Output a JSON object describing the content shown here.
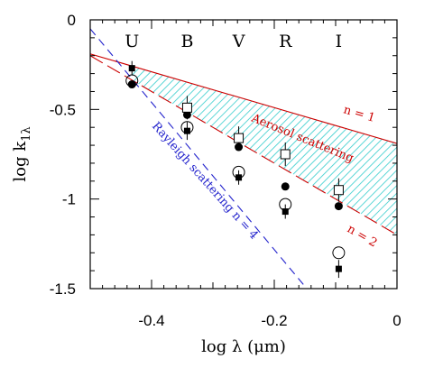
{
  "chart_data": {
    "type": "scatter",
    "xlabel": "log λ (μm)",
    "ylabel": "log k",
    "ylabel_sub": "1λ",
    "xlim": [
      -0.5,
      0
    ],
    "ylim": [
      -1.5,
      0
    ],
    "x_ticks": [
      -0.4,
      -0.2,
      0
    ],
    "x_tick_labels": [
      "-0.4",
      "-0.2",
      "0"
    ],
    "y_ticks": [
      0,
      -0.5,
      -1,
      -1.5
    ],
    "y_tick_labels": [
      "0",
      "-0.5",
      "-1",
      "-1.5"
    ],
    "bands": [
      {
        "label": "U",
        "x": -0.432
      },
      {
        "label": "B",
        "x": -0.342
      },
      {
        "label": "V",
        "x": -0.258
      },
      {
        "label": "R",
        "x": -0.182
      },
      {
        "label": "I",
        "x": -0.095
      }
    ],
    "series": [
      {
        "marker": "filled-square",
        "x": [
          -0.432,
          -0.342,
          -0.258,
          -0.182,
          -0.095
        ],
        "y": [
          -0.27,
          -0.62,
          -0.88,
          -1.07,
          -1.39
        ],
        "yerr_low": [
          0.04,
          0.05,
          0.04,
          0.04,
          0.05
        ],
        "yerr_high": [
          0.04,
          0.05,
          0.04,
          0.04,
          0.05
        ]
      },
      {
        "marker": "filled-circle",
        "x": [
          -0.432,
          -0.342,
          -0.258,
          -0.182,
          -0.095
        ],
        "y": [
          -0.36,
          -0.53,
          -0.71,
          -0.93,
          -1.04
        ]
      },
      {
        "marker": "open-circle",
        "x": [
          -0.432,
          -0.342,
          -0.258,
          -0.182,
          -0.095
        ],
        "y": [
          -0.34,
          -0.6,
          -0.85,
          -1.03,
          -1.3
        ]
      },
      {
        "marker": "open-square",
        "x": [
          -0.342,
          -0.258,
          -0.182,
          -0.095
        ],
        "y": [
          -0.49,
          -0.66,
          -0.75,
          -0.95
        ]
      }
    ],
    "model_lines": [
      {
        "label": "Aerosol scattering, n = 1",
        "short": "n = 1",
        "color": "#cc0000",
        "dash": "solid",
        "x": [
          -0.5,
          0
        ],
        "y": [
          -0.19,
          -0.69
        ]
      },
      {
        "label": "n = 2",
        "short": "n = 2",
        "color": "#cc0000",
        "dash": "long-dash",
        "x": [
          -0.5,
          0
        ],
        "y": [
          -0.2,
          -1.2
        ]
      },
      {
        "label": "Rayleigh scattering n = 4",
        "color": "#2222cc",
        "dash": "dash",
        "x": [
          -0.5,
          -0.147
        ],
        "y": [
          -0.05,
          -1.5
        ]
      }
    ],
    "annotations": {
      "aerosol": "Aerosol scattering",
      "n1": "n = 1",
      "n2": "n = 2",
      "rayleigh": "Rayleigh scattering n = 4"
    },
    "shaded_region": {
      "between": [
        "n = 1",
        "n = 2"
      ],
      "x_from": -0.432,
      "x_to": 0,
      "fill": "hatched",
      "color": "#33cccc"
    },
    "colors": {
      "aerosol": "#cc0000",
      "rayleigh": "#2222cc",
      "hatch": "#33cccc",
      "data": "#000000"
    }
  }
}
